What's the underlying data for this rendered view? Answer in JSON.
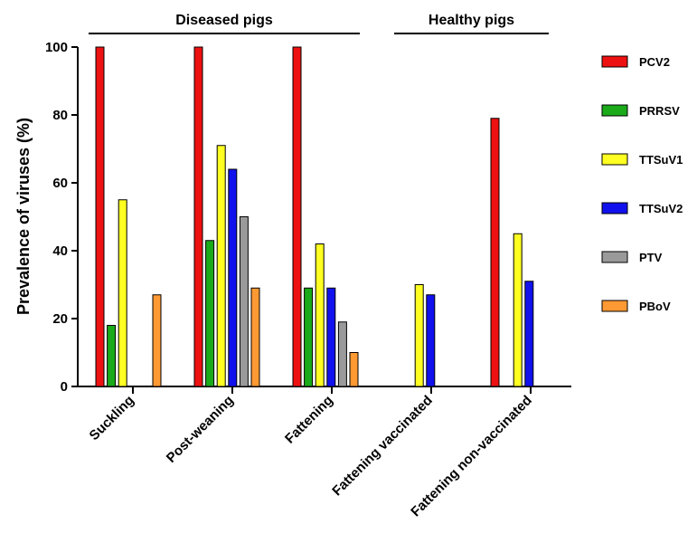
{
  "chart_data": {
    "type": "bar",
    "ylabel": "Prevalence of viruses (%)",
    "xlabel": "",
    "ylim": [
      0,
      100
    ],
    "yticks": [
      0,
      20,
      40,
      60,
      80,
      100
    ],
    "categories": [
      "Suckling",
      "Post-weaning",
      "Fattening",
      "Fattening vaccinated",
      "Fattening non-vaccinated"
    ],
    "category_groups": [
      {
        "label": "Diseased pigs",
        "categories": [
          "Suckling",
          "Post-weaning",
          "Fattening"
        ]
      },
      {
        "label": "Healthy pigs",
        "categories": [
          "Fattening vaccinated",
          "Fattening non-vaccinated"
        ]
      }
    ],
    "legend_position": "right",
    "grid": false,
    "series": [
      {
        "name": "PCV2",
        "color": "#ee1111",
        "values": [
          100,
          100,
          100,
          0,
          79
        ]
      },
      {
        "name": "PRRSV",
        "color": "#1aaa1a",
        "values": [
          18,
          43,
          29,
          0,
          0
        ]
      },
      {
        "name": "TTSuV1",
        "color": "#ffff22",
        "values": [
          55,
          71,
          42,
          30,
          45
        ]
      },
      {
        "name": "TTSuV2",
        "color": "#1111ee",
        "values": [
          0,
          64,
          29,
          27,
          31
        ]
      },
      {
        "name": "PTV",
        "color": "#9a9a9a",
        "values": [
          0,
          50,
          19,
          0,
          0
        ]
      },
      {
        "name": "PBoV",
        "color": "#ff9933",
        "values": [
          27,
          29,
          10,
          0,
          0
        ]
      }
    ]
  }
}
